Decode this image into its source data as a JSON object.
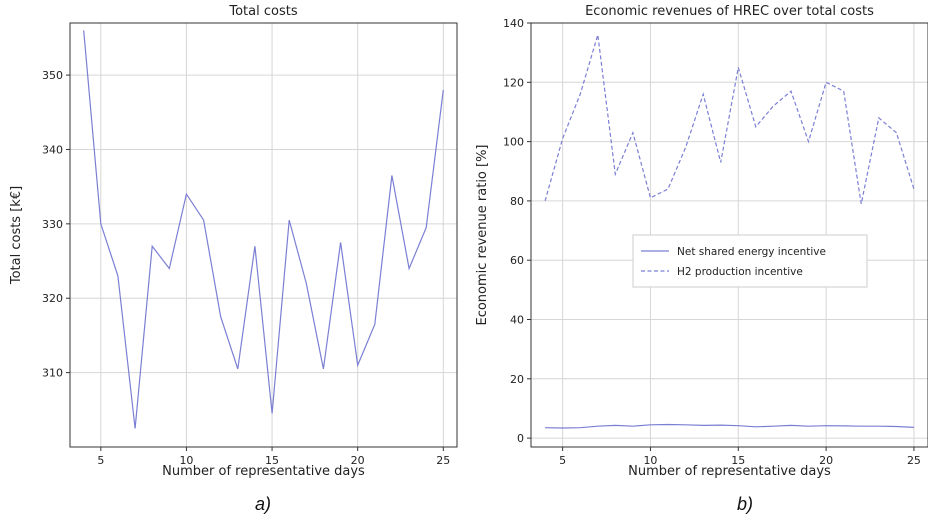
{
  "chart_data": [
    {
      "type": "line",
      "title": "Total costs",
      "xlabel": "Number of representative days",
      "ylabel": "Total costs [k€]",
      "caption": "a)",
      "xlim": [
        3.2,
        25.8
      ],
      "ylim": [
        300,
        357
      ],
      "xticks": [
        5,
        10,
        15,
        20,
        25
      ],
      "yticks": [
        310,
        320,
        330,
        340,
        350
      ],
      "grid": true,
      "colors": {
        "line": "#7b7fd4"
      },
      "series": [
        {
          "x": [
            4,
            5,
            6,
            7,
            8,
            9,
            10,
            11,
            12,
            13,
            14,
            15,
            16,
            17,
            18,
            19,
            20,
            21,
            22,
            23,
            24,
            25
          ],
          "values": [
            356.0,
            330.0,
            323.0,
            302.5,
            327.0,
            324.0,
            334.0,
            330.5,
            317.5,
            310.5,
            327.0,
            304.5,
            330.5,
            322.0,
            310.5,
            327.5,
            311.0,
            316.5,
            336.5,
            324.0,
            329.5,
            348.0
          ]
        }
      ]
    },
    {
      "type": "line",
      "title": "Economic revenues of HREC over total costs",
      "xlabel": "Number of representative days",
      "ylabel": "Economic revenue ratio [%]",
      "caption": "b)",
      "xlim": [
        3.2,
        25.8
      ],
      "ylim": [
        -3,
        140
      ],
      "xticks": [
        5,
        10,
        15,
        20,
        25
      ],
      "yticks": [
        0,
        20,
        40,
        60,
        80,
        100,
        120,
        140
      ],
      "grid": true,
      "legend_position": "center",
      "colors": {
        "line": "#7b7fd4"
      },
      "series": [
        {
          "name": "Net shared energy incentive",
          "style": "solid",
          "x": [
            4,
            5,
            6,
            7,
            8,
            9,
            10,
            11,
            12,
            13,
            14,
            15,
            16,
            17,
            18,
            19,
            20,
            21,
            22,
            23,
            24,
            25
          ],
          "values": [
            3.5,
            3.4,
            3.5,
            4.0,
            4.3,
            4.0,
            4.5,
            4.6,
            4.5,
            4.3,
            4.4,
            4.2,
            3.8,
            4.0,
            4.3,
            4.0,
            4.2,
            4.1,
            4.0,
            4.0,
            3.9,
            3.6
          ]
        },
        {
          "name": "H2 production incentive",
          "style": "dashed",
          "x": [
            4,
            5,
            6,
            7,
            8,
            9,
            10,
            11,
            12,
            13,
            14,
            15,
            16,
            17,
            18,
            19,
            20,
            21,
            22,
            23,
            24,
            25
          ],
          "values": [
            80,
            101,
            116,
            136,
            89,
            103,
            81,
            84,
            98,
            116,
            93,
            125,
            105,
            112,
            117,
            100,
            120,
            117,
            79,
            108,
            103,
            84
          ]
        }
      ]
    }
  ]
}
